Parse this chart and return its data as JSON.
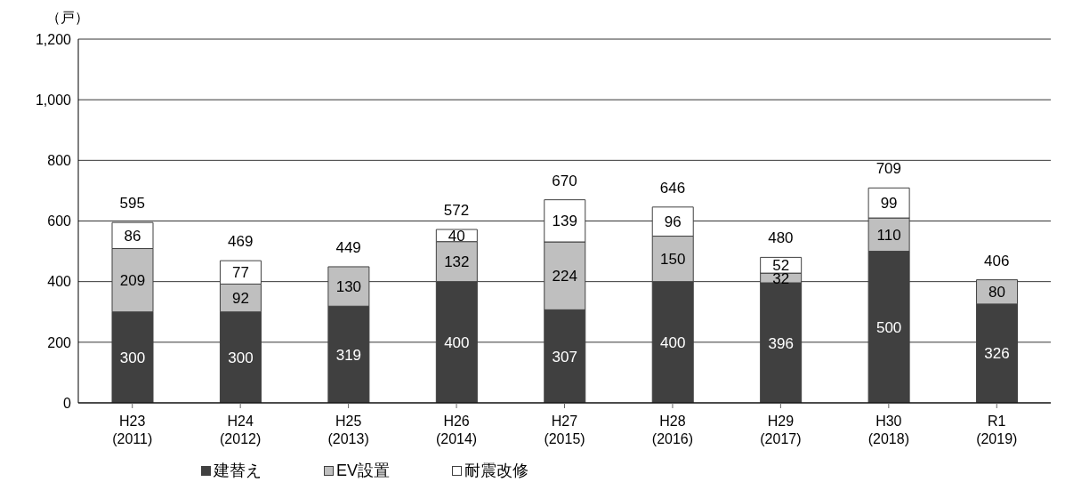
{
  "chart_data": {
    "type": "bar",
    "stacked": true,
    "ylabel": "（戸）",
    "categories": [
      "H23\n(2011)",
      "H24\n(2012)",
      "H25\n(2013)",
      "H26\n(2014)",
      "H27\n(2015)",
      "H28\n(2016)",
      "H29\n(2017)",
      "H30\n(2018)",
      "R1\n(2019)"
    ],
    "series": [
      {
        "name": "建替え",
        "color": "#404040",
        "values": [
          300,
          300,
          319,
          400,
          307,
          400,
          396,
          500,
          326
        ]
      },
      {
        "name": "EV設置",
        "color": "#bfbfbf",
        "values": [
          209,
          92,
          130,
          132,
          224,
          150,
          32,
          110,
          80
        ]
      },
      {
        "name": "耐震改修",
        "color": "#ffffff",
        "values": [
          86,
          77,
          null,
          40,
          139,
          96,
          52,
          99,
          null
        ]
      }
    ],
    "totals": [
      "595",
      "469",
      "449",
      "572",
      "670",
      "646",
      "480",
      "709",
      "406"
    ],
    "data_labels": true,
    "ylim": [
      0,
      1200
    ],
    "yticks": [
      0,
      200,
      400,
      600,
      800,
      {
        "value": 1000,
        "label": "1,000"
      },
      {
        "value": 1200,
        "label": "1,200"
      }
    ],
    "grid": "y",
    "legend": "bottom"
  }
}
